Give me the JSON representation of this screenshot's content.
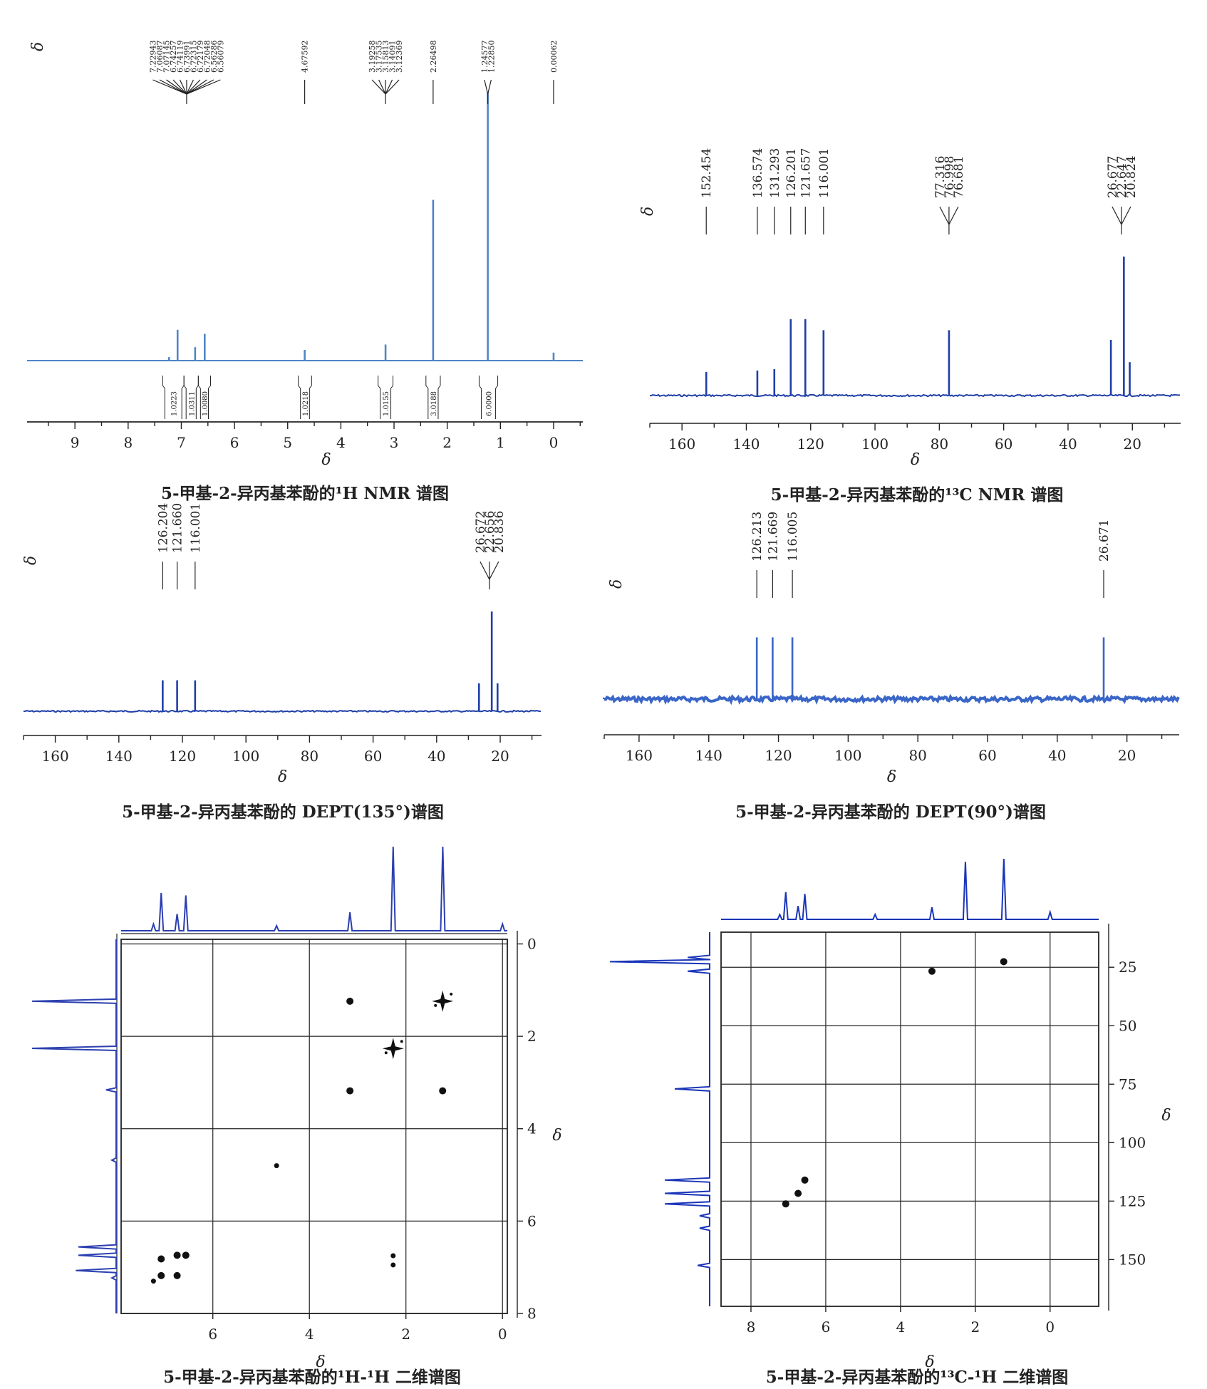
{
  "figure": {
    "axis_symbol": "δ"
  },
  "chart_data": [
    {
      "id": "h1",
      "type": "line",
      "title": "5-甲基-2-异丙基苯酚的¹H NMR 谱图",
      "xlabel": "δ",
      "xlim": [
        9.9,
        -0.55
      ],
      "xticks": [
        9,
        8,
        7,
        6,
        5,
        4,
        3,
        2,
        1,
        0
      ],
      "line_color": "#4f86c6",
      "baseline_label": "δ",
      "peaks": [
        {
          "x": 7.23,
          "h": 0.013
        },
        {
          "x": 7.07,
          "h": 0.115
        },
        {
          "x": 6.74,
          "h": 0.05
        },
        {
          "x": 6.56,
          "h": 0.1
        },
        {
          "x": 4.68,
          "h": 0.04
        },
        {
          "x": 3.16,
          "h": 0.06
        },
        {
          "x": 2.265,
          "h": 0.6
        },
        {
          "x": 1.237,
          "h": 1.0
        },
        {
          "x": 0.0,
          "h": 0.03
        }
      ],
      "peak_label_groups": [
        {
          "labels": [
            "7.22943",
            "7.06087",
            "7.07145",
            "6.74257",
            "6.74119",
            "6.73991",
            "6.72315",
            "6.72179",
            "6.72048",
            "6.56286",
            "6.56079"
          ],
          "anchor": 6.9
        },
        {
          "labels": [
            "4.67592"
          ],
          "anchor": 4.68
        },
        {
          "labels": [
            "3.19258",
            "3.17535",
            "3.15813",
            "3.14091",
            "3.12369"
          ],
          "anchor": 3.16
        },
        {
          "labels": [
            "2.26498"
          ],
          "anchor": 2.265
        },
        {
          "labels": [
            "1.24577",
            "1.22850"
          ],
          "anchor": 1.237
        },
        {
          "labels": [
            "0.00062"
          ],
          "anchor": 0.0
        }
      ],
      "integrals": [
        {
          "x1": 7.35,
          "x2": 6.95,
          "value": "1.0223"
        },
        {
          "x1": 6.95,
          "x2": 6.68,
          "value": "1.0311"
        },
        {
          "x1": 6.68,
          "x2": 6.45,
          "value": "1.0080"
        },
        {
          "x1": 4.8,
          "x2": 4.55,
          "value": "1.0218"
        },
        {
          "x1": 3.3,
          "x2": 3.02,
          "value": "1.0155"
        },
        {
          "x1": 2.4,
          "x2": 2.13,
          "value": "3.0188"
        },
        {
          "x1": 1.4,
          "x2": 1.05,
          "value": "6.0000"
        }
      ]
    },
    {
      "id": "c13",
      "type": "line",
      "title": "5-甲基-2-异丙基苯酚的¹³C NMR 谱图",
      "xlabel": "δ",
      "xlim": [
        170,
        5
      ],
      "xticks": [
        160,
        140,
        120,
        100,
        80,
        60,
        40,
        20
      ],
      "line_color": "#1f3fa8",
      "baseline_label": "δ",
      "peaks": [
        {
          "x": 152.454,
          "h": 0.17
        },
        {
          "x": 136.574,
          "h": 0.18
        },
        {
          "x": 131.293,
          "h": 0.19
        },
        {
          "x": 126.201,
          "h": 0.55
        },
        {
          "x": 121.657,
          "h": 0.55
        },
        {
          "x": 116.001,
          "h": 0.47
        },
        {
          "x": 77.0,
          "h": 0.47
        },
        {
          "x": 26.677,
          "h": 0.4
        },
        {
          "x": 22.647,
          "h": 1.0
        },
        {
          "x": 20.824,
          "h": 0.24
        }
      ],
      "peak_label_groups": [
        {
          "labels": [
            "152.454"
          ],
          "anchor": 152.454
        },
        {
          "labels": [
            "136.574"
          ],
          "anchor": 136.574
        },
        {
          "labels": [
            "131.293"
          ],
          "anchor": 131.293
        },
        {
          "labels": [
            "126.201"
          ],
          "anchor": 126.201
        },
        {
          "labels": [
            "121.657"
          ],
          "anchor": 121.657
        },
        {
          "labels": [
            "116.001"
          ],
          "anchor": 116.001
        },
        {
          "labels": [
            "77.316",
            "76.998",
            "76.681"
          ],
          "anchor": 77.0
        },
        {
          "labels": [
            "26.677",
            "22.647",
            "20.824"
          ],
          "anchor": 23.4
        }
      ]
    },
    {
      "id": "dept135",
      "type": "line",
      "title": "5-甲基-2-异丙基苯酚的 DEPT(135°)谱图",
      "xlabel": "δ",
      "xlim": [
        170,
        7
      ],
      "xticks": [
        160,
        140,
        120,
        100,
        80,
        60,
        40,
        20
      ],
      "line_color": "#1f3fa8",
      "baseline_label": "δ",
      "peaks": [
        {
          "x": 126.204,
          "h": 0.31
        },
        {
          "x": 121.66,
          "h": 0.31
        },
        {
          "x": 116.001,
          "h": 0.31
        },
        {
          "x": 26.672,
          "h": 0.28
        },
        {
          "x": 22.656,
          "h": 1.0
        },
        {
          "x": 20.836,
          "h": 0.28
        }
      ],
      "peak_label_groups": [
        {
          "labels": [
            "126.204"
          ],
          "anchor": 126.204
        },
        {
          "labels": [
            "121.660"
          ],
          "anchor": 121.66
        },
        {
          "labels": [
            "116.001"
          ],
          "anchor": 116.001
        },
        {
          "labels": [
            "26.672",
            "22.656",
            "20.836"
          ],
          "anchor": 23.4
        }
      ]
    },
    {
      "id": "dept90",
      "type": "line",
      "title": "5-甲基-2-异丙基苯酚的 DEPT(90°)谱图",
      "xlabel": "δ",
      "xlim": [
        170,
        5
      ],
      "xticks": [
        160,
        140,
        120,
        100,
        80,
        60,
        40,
        20
      ],
      "line_color": "#3a66c8",
      "baseline_label": "δ",
      "peaks": [
        {
          "x": 126.213,
          "h": 0.78
        },
        {
          "x": 121.669,
          "h": 0.78
        },
        {
          "x": 116.005,
          "h": 0.78
        },
        {
          "x": 26.671,
          "h": 0.78
        }
      ],
      "peak_label_groups": [
        {
          "labels": [
            "126.213"
          ],
          "anchor": 126.213
        },
        {
          "labels": [
            "121.669"
          ],
          "anchor": 121.669
        },
        {
          "labels": [
            "116.005"
          ],
          "anchor": 116.005
        },
        {
          "labels": [
            "26.671"
          ],
          "anchor": 26.671
        }
      ]
    },
    {
      "id": "hh2d",
      "type": "scatter",
      "title": "5-甲基-2-异丙基苯酚的¹H-¹H 二维谱图",
      "xlabel": "δ",
      "ylabel": "δ",
      "xlim": [
        7.9,
        -0.1
      ],
      "ylim": [
        -0.1,
        8.0
      ],
      "xticks": [
        6,
        4,
        2,
        0
      ],
      "yticks": [
        0,
        2,
        4,
        6,
        8
      ],
      "grid": true,
      "top_projection": [
        {
          "x": 7.23,
          "h": 0.08
        },
        {
          "x": 7.07,
          "h": 0.45
        },
        {
          "x": 6.74,
          "h": 0.2
        },
        {
          "x": 6.56,
          "h": 0.42
        },
        {
          "x": 4.68,
          "h": 0.06
        },
        {
          "x": 3.16,
          "h": 0.22
        },
        {
          "x": 2.265,
          "h": 1.0
        },
        {
          "x": 1.237,
          "h": 1.0
        },
        {
          "x": 0.0,
          "h": 0.08
        }
      ],
      "left_projection": [
        {
          "y": 1.24,
          "h": 1.0
        },
        {
          "y": 2.26,
          "h": 1.0
        },
        {
          "y": 3.16,
          "h": 0.12
        },
        {
          "y": 4.68,
          "h": 0.05
        },
        {
          "y": 6.56,
          "h": 0.45
        },
        {
          "y": 6.74,
          "h": 0.45
        },
        {
          "y": 7.07,
          "h": 0.48
        },
        {
          "y": 7.23,
          "h": 0.05
        }
      ],
      "points": [
        {
          "x": 3.16,
          "y": 1.24,
          "kind": "dot"
        },
        {
          "x": 1.24,
          "y": 1.24,
          "kind": "star"
        },
        {
          "x": 2.265,
          "y": 2.265,
          "kind": "star"
        },
        {
          "x": 3.16,
          "y": 3.18,
          "kind": "dot"
        },
        {
          "x": 1.24,
          "y": 3.18,
          "kind": "dot"
        },
        {
          "x": 4.68,
          "y": 4.8,
          "kind": "small"
        },
        {
          "x": 7.07,
          "y": 6.82,
          "kind": "dot"
        },
        {
          "x": 6.74,
          "y": 6.74,
          "kind": "dot"
        },
        {
          "x": 6.56,
          "y": 6.74,
          "kind": "dot"
        },
        {
          "x": 7.07,
          "y": 7.18,
          "kind": "dot"
        },
        {
          "x": 6.74,
          "y": 7.18,
          "kind": "dot"
        },
        {
          "x": 7.23,
          "y": 7.3,
          "kind": "small"
        },
        {
          "x": 2.265,
          "y": 6.75,
          "kind": "small"
        },
        {
          "x": 2.265,
          "y": 6.95,
          "kind": "small"
        }
      ]
    },
    {
      "id": "ch2d",
      "type": "scatter",
      "title": "5-甲基-2-异丙基苯酚的¹³C-¹H 二维谱图",
      "xlabel": "δ",
      "ylabel": "δ",
      "xlim": [
        8.8,
        -1.3
      ],
      "ylim": [
        10,
        170
      ],
      "xticks": [
        8,
        6,
        4,
        2,
        0
      ],
      "yticks": [
        25,
        50,
        75,
        100,
        125,
        150
      ],
      "grid": true,
      "top_projection": [
        {
          "x": 7.23,
          "h": 0.08
        },
        {
          "x": 7.07,
          "h": 0.45
        },
        {
          "x": 6.74,
          "h": 0.22
        },
        {
          "x": 6.56,
          "h": 0.42
        },
        {
          "x": 4.68,
          "h": 0.08
        },
        {
          "x": 3.16,
          "h": 0.2
        },
        {
          "x": 2.265,
          "h": 0.95
        },
        {
          "x": 1.237,
          "h": 1.0
        },
        {
          "x": 0.0,
          "h": 0.12
        }
      ],
      "left_projection": [
        {
          "y": 20.8,
          "h": 0.22
        },
        {
          "y": 22.6,
          "h": 1.0
        },
        {
          "y": 26.7,
          "h": 0.22
        },
        {
          "y": 77.0,
          "h": 0.35
        },
        {
          "y": 116.0,
          "h": 0.45
        },
        {
          "y": 121.7,
          "h": 0.45
        },
        {
          "y": 126.2,
          "h": 0.45
        },
        {
          "y": 131.3,
          "h": 0.1
        },
        {
          "y": 136.6,
          "h": 0.1
        },
        {
          "y": 152.5,
          "h": 0.12
        }
      ],
      "points": [
        {
          "x": 1.24,
          "y": 22.6
        },
        {
          "x": 3.16,
          "y": 26.7
        },
        {
          "x": 7.07,
          "y": 126.2
        },
        {
          "x": 6.74,
          "y": 121.7
        },
        {
          "x": 6.56,
          "y": 116.0
        }
      ]
    }
  ]
}
